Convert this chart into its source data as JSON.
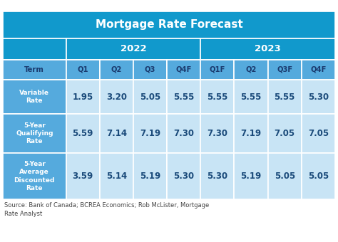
{
  "title": "Mortgage Rate Forecast",
  "col_headers": [
    "Term",
    "Q1",
    "Q2",
    "Q3",
    "Q4F",
    "Q1F",
    "Q2",
    "Q3F",
    "Q4F"
  ],
  "rows": [
    {
      "label": "Variable\nRate",
      "values": [
        "1.95",
        "3.20",
        "5.05",
        "5.55",
        "5.55",
        "5.55",
        "5.55",
        "5.30"
      ]
    },
    {
      "label": "5-Year\nQualifying\nRate",
      "values": [
        "5.59",
        "7.14",
        "7.19",
        "7.30",
        "7.30",
        "7.19",
        "7.05",
        "7.05"
      ]
    },
    {
      "label": "5-Year\nAverage\nDiscounted\nRate",
      "values": [
        "3.59",
        "5.14",
        "5.19",
        "5.30",
        "5.30",
        "5.19",
        "5.05",
        "5.05"
      ]
    }
  ],
  "source_text": "Source: Bank of Canada; BCREA Economics; Rob McLister, Mortgage\nRate Analyst",
  "title_bg": "#1199cc",
  "year_header_bg": "#1199cc",
  "col_header_bg": "#55aadd",
  "data_cell_bg": "#c8e4f5",
  "label_cell_bg": "#55aadd",
  "title_color": "#ffffff",
  "year_header_color": "#ffffff",
  "col_header_color": "#1a3a6e",
  "label_color": "#ffffff",
  "data_color": "#1a4a7a",
  "source_color": "#444444",
  "divider_color": "#ffffff"
}
